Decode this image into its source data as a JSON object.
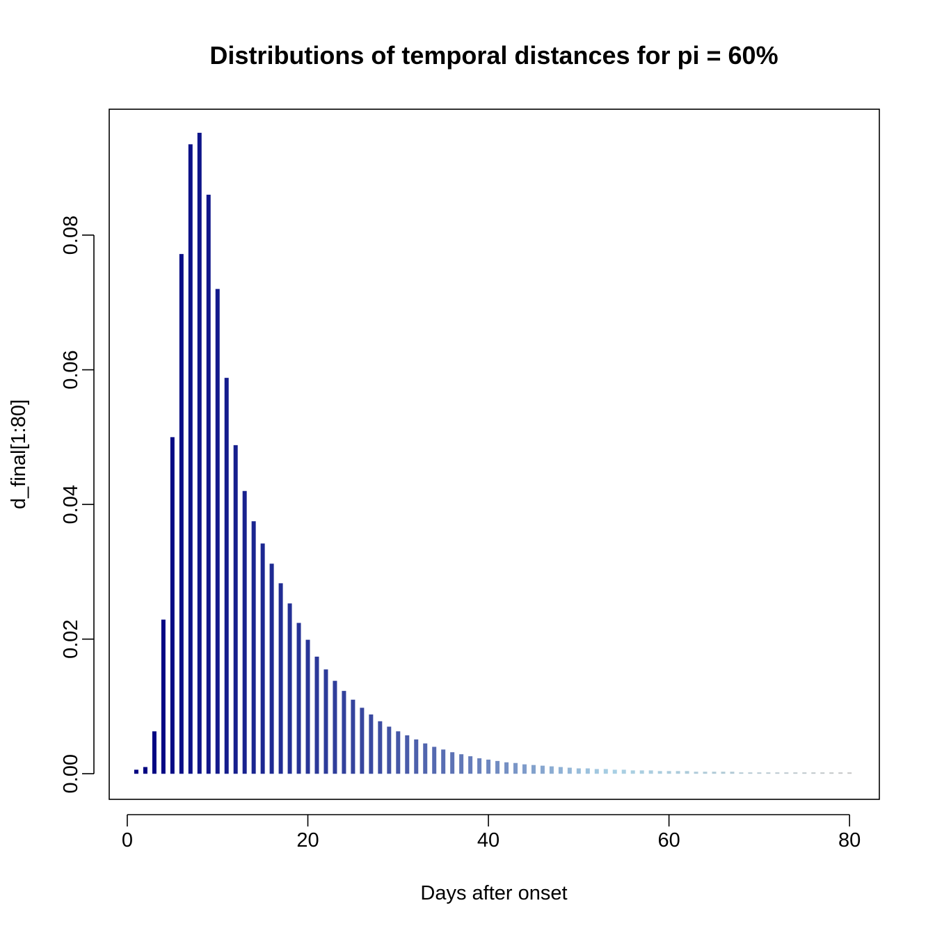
{
  "chart_data": {
    "type": "bar",
    "title": "Distributions of temporal distances for pi = 60%",
    "xlabel": "Days after onset",
    "ylabel": "d_final[1:80]",
    "xlim": [
      -2,
      83.3
    ],
    "ylim": [
      -0.0038,
      0.0987
    ],
    "xticks": [
      0,
      20,
      40,
      60,
      80
    ],
    "xtick_labels": [
      "0",
      "20",
      "40",
      "60",
      "80"
    ],
    "yticks": [
      0.0,
      0.02,
      0.04,
      0.06,
      0.08
    ],
    "ytick_labels": [
      "0.00",
      "0.02",
      "0.04",
      "0.06",
      "0.08"
    ],
    "x": [
      1,
      2,
      3,
      4,
      5,
      6,
      7,
      8,
      9,
      10,
      11,
      12,
      13,
      14,
      15,
      16,
      17,
      18,
      19,
      20,
      21,
      22,
      23,
      24,
      25,
      26,
      27,
      28,
      29,
      30,
      31,
      32,
      33,
      34,
      35,
      36,
      37,
      38,
      39,
      40,
      41,
      42,
      43,
      44,
      45,
      46,
      47,
      48,
      49,
      50,
      51,
      52,
      53,
      54,
      55,
      56,
      57,
      58,
      59,
      60,
      61,
      62,
      63,
      64,
      65,
      66,
      67,
      68,
      69,
      70,
      71,
      72,
      73,
      74,
      75,
      76,
      77,
      78,
      79,
      80
    ],
    "values": [
      0.0006,
      0.001,
      0.0063,
      0.0229,
      0.05,
      0.0772,
      0.0935,
      0.0952,
      0.086,
      0.072,
      0.0588,
      0.0488,
      0.042,
      0.0375,
      0.0342,
      0.0312,
      0.0283,
      0.0253,
      0.0224,
      0.0199,
      0.0174,
      0.0155,
      0.0138,
      0.0123,
      0.011,
      0.0098,
      0.0088,
      0.0078,
      0.007,
      0.0063,
      0.0057,
      0.0051,
      0.0045,
      0.004,
      0.0036,
      0.0032,
      0.0029,
      0.0026,
      0.0023,
      0.0021,
      0.0019,
      0.0017,
      0.0016,
      0.0014,
      0.0013,
      0.0012,
      0.0011,
      0.001,
      0.0009,
      0.0008,
      0.0008,
      0.0007,
      0.0007,
      0.0006,
      0.0006,
      0.0005,
      0.0005,
      0.0005,
      0.0004,
      0.0004,
      0.0004,
      0.0004,
      0.0003,
      0.0003,
      0.0003,
      0.0003,
      0.0003,
      0.0002,
      0.0002,
      0.0002,
      0.0002,
      0.0002,
      0.0002,
      0.0002,
      0.0002,
      0.0002,
      0.0002,
      0.0002,
      0.0002,
      0.0002
    ],
    "color_gradient": [
      "#000080",
      "#1a2590",
      "#3a4aa0",
      "#6f88c0",
      "#a8d0e4",
      "#b0c8d4",
      "#c4c4c4"
    ],
    "grid": false,
    "legend": "none"
  }
}
